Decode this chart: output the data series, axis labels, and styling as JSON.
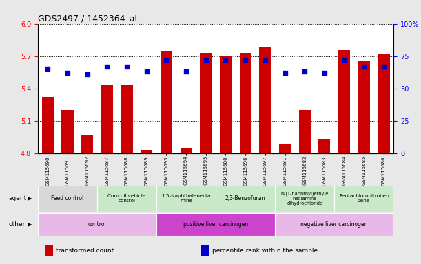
{
  "title": "GDS2497 / 1452364_at",
  "samples": [
    "GSM115690",
    "GSM115691",
    "GSM115692",
    "GSM115687",
    "GSM115688",
    "GSM115689",
    "GSM115693",
    "GSM115694",
    "GSM115695",
    "GSM115680",
    "GSM115696",
    "GSM115697",
    "GSM115681",
    "GSM115682",
    "GSM115683",
    "GSM115684",
    "GSM115685",
    "GSM115686"
  ],
  "bar_values": [
    5.32,
    5.2,
    4.97,
    5.43,
    5.43,
    4.83,
    5.75,
    4.84,
    5.73,
    5.7,
    5.73,
    5.78,
    4.88,
    5.2,
    4.93,
    5.76,
    5.65,
    5.72
  ],
  "percentile_values": [
    65,
    62,
    61,
    67,
    67,
    63,
    72,
    63,
    72,
    72,
    72,
    72,
    62,
    63,
    62,
    72,
    67,
    67
  ],
  "ymin": 4.8,
  "ymax": 6.0,
  "yticks_left": [
    4.8,
    5.1,
    5.4,
    5.7,
    6.0
  ],
  "yticks_right": [
    0,
    25,
    50,
    75,
    100
  ],
  "bar_color": "#cc0000",
  "percentile_color": "#0000cc",
  "agent_groups": [
    {
      "label": "Feed control",
      "start": 0,
      "end": 3,
      "color": "#d8d8d8"
    },
    {
      "label": "Corn oil vehicle\ncontrol",
      "start": 3,
      "end": 6,
      "color": "#c8e8c8"
    },
    {
      "label": "1,5-Naphthalenedia\nmine",
      "start": 6,
      "end": 9,
      "color": "#c8e8c8"
    },
    {
      "label": "2,3-Benzofuran",
      "start": 9,
      "end": 12,
      "color": "#c8e8c8"
    },
    {
      "label": "N-(1-naphthyl)ethyle\nnediamine\ndihydrochloride",
      "start": 12,
      "end": 15,
      "color": "#c8e8c8"
    },
    {
      "label": "Pentachloronitroben\nzene",
      "start": 15,
      "end": 18,
      "color": "#c8e8c8"
    }
  ],
  "other_groups": [
    {
      "label": "control",
      "start": 0,
      "end": 6,
      "color": "#e8b8e8"
    },
    {
      "label": "positive liver carcinogen",
      "start": 6,
      "end": 12,
      "color": "#cc44cc"
    },
    {
      "label": "negative liver carcinogen",
      "start": 12,
      "end": 18,
      "color": "#e8b8e8"
    }
  ],
  "legend_items": [
    {
      "label": "transformed count",
      "color": "#cc0000"
    },
    {
      "label": "percentile rank within the sample",
      "color": "#0000cc"
    }
  ],
  "bg_color": "#e8e8e8",
  "plot_bg": "#ffffff"
}
